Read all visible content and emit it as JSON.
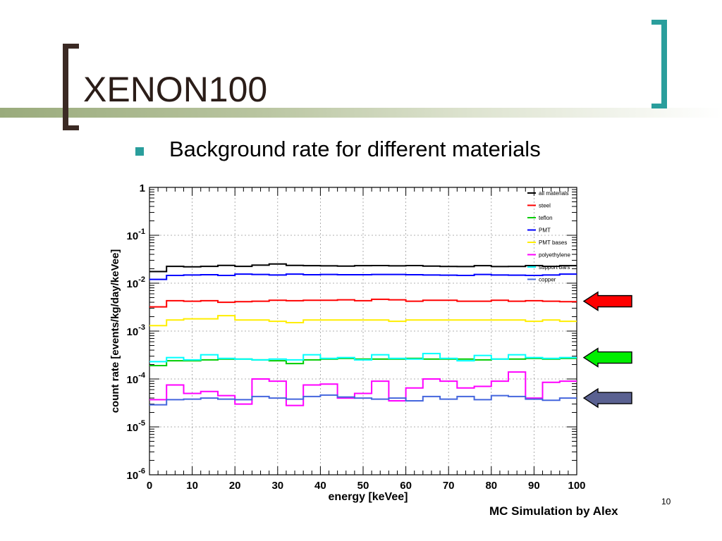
{
  "slide": {
    "title": "XENON100",
    "bullet": "Background rate for different materials",
    "credit": "MC Simulation by Alex",
    "page_number": "10",
    "bracket_left_color": "#3b2a24",
    "bracket_right_color": "#2a9e9c",
    "bullet_color": "#2a9e9c"
  },
  "chart_data": {
    "type": "line",
    "title": "",
    "xlabel": "energy [keVee]",
    "ylabel": "count rate [events/kg/day/keVee]",
    "xlim": [
      0,
      100
    ],
    "ylim": [
      1e-06,
      1
    ],
    "yscale": "log",
    "grid": true,
    "legend_position": "top-right",
    "x_ticks": [
      "0",
      "10",
      "20",
      "30",
      "40",
      "50",
      "60",
      "70",
      "80",
      "90",
      "100"
    ],
    "y_ticks": [
      {
        "base": "1",
        "exp": ""
      },
      {
        "base": "10",
        "exp": "-1"
      },
      {
        "base": "10",
        "exp": "-2"
      },
      {
        "base": "10",
        "exp": "-3"
      },
      {
        "base": "10",
        "exp": "-4"
      },
      {
        "base": "10",
        "exp": "-5"
      },
      {
        "base": "10",
        "exp": "-6"
      }
    ],
    "bin_width": 4,
    "series": [
      {
        "name": "all materials",
        "color": "#000000",
        "values": [
          0.0175,
          0.0225,
          0.022,
          0.0225,
          0.0235,
          0.0225,
          0.0238,
          0.0252,
          0.0235,
          0.0232,
          0.023,
          0.0228,
          0.0232,
          0.0233,
          0.023,
          0.0233,
          0.0228,
          0.0223,
          0.0222,
          0.0232,
          0.0222,
          0.0223,
          0.0233,
          0.0225,
          0.0232
        ]
      },
      {
        "name": "steel",
        "color": "#ff0000",
        "values": [
          0.0032,
          0.0043,
          0.0042,
          0.0043,
          0.004,
          0.0041,
          0.0042,
          0.0044,
          0.0043,
          0.0044,
          0.0044,
          0.0045,
          0.0043,
          0.0046,
          0.0045,
          0.0042,
          0.0044,
          0.0044,
          0.0042,
          0.0042,
          0.0044,
          0.0042,
          0.0043,
          0.0042,
          0.0041
        ]
      },
      {
        "name": "teflon",
        "color": "#00cc00",
        "values": [
          0.00019,
          0.00024,
          0.00024,
          0.00025,
          0.00026,
          0.00026,
          0.00025,
          0.00024,
          0.00021,
          0.00025,
          0.00026,
          0.00027,
          0.00026,
          0.00026,
          0.00026,
          0.00027,
          0.00026,
          0.00026,
          0.00026,
          0.00025,
          0.00026,
          0.00026,
          0.00027,
          0.00026,
          0.00027
        ]
      },
      {
        "name": "PMT",
        "color": "#0000ff",
        "values": [
          0.012,
          0.0145,
          0.0148,
          0.015,
          0.0145,
          0.0155,
          0.0152,
          0.0148,
          0.0155,
          0.015,
          0.0152,
          0.015,
          0.015,
          0.0152,
          0.0152,
          0.015,
          0.0148,
          0.0147,
          0.0145,
          0.0152,
          0.0148,
          0.0147,
          0.0145,
          0.0148,
          0.0155
        ]
      },
      {
        "name": "PMT bases",
        "color": "#ffee00",
        "values": [
          0.0013,
          0.0017,
          0.0018,
          0.0018,
          0.0021,
          0.0017,
          0.0017,
          0.0016,
          0.0015,
          0.0017,
          0.0017,
          0.0017,
          0.0017,
          0.0017,
          0.0016,
          0.0017,
          0.0017,
          0.0017,
          0.0017,
          0.0017,
          0.0017,
          0.0017,
          0.0016,
          0.0017,
          0.0016
        ]
      },
      {
        "name": "polyethylene",
        "color": "#ff00ff",
        "values": [
          3.7e-05,
          7.5e-05,
          5e-05,
          5.5e-05,
          4.5e-05,
          3e-05,
          0.0001,
          9e-05,
          2.8e-05,
          7.5e-05,
          7.8e-05,
          4e-05,
          5e-05,
          9e-05,
          3.5e-05,
          6.5e-05,
          0.0001,
          9e-05,
          6.5e-05,
          7e-05,
          9e-05,
          0.00014,
          4e-05,
          8.5e-05,
          9e-05
        ]
      },
      {
        "name": "support bars",
        "color": "#00ffff",
        "values": [
          0.00023,
          0.00028,
          0.00025,
          0.00032,
          0.00027,
          0.00026,
          0.00025,
          0.00026,
          0.00025,
          0.00032,
          0.00027,
          0.00028,
          0.00025,
          0.00032,
          0.00027,
          0.00026,
          0.00034,
          0.00027,
          0.00024,
          0.00031,
          0.00026,
          0.00032,
          0.00028,
          0.00027,
          0.00028
        ]
      },
      {
        "name": "copper",
        "color": "#4466dd",
        "values": [
          2.9e-05,
          3.7e-05,
          3.8e-05,
          4e-05,
          3.8e-05,
          3.7e-05,
          4.3e-05,
          4e-05,
          3.8e-05,
          4.3e-05,
          4.6e-05,
          4.2e-05,
          4e-05,
          3.8e-05,
          4e-05,
          3.5e-05,
          4.3e-05,
          3.8e-05,
          4.3e-05,
          3.7e-05,
          4.5e-05,
          4.3e-05,
          3.8e-05,
          3.6e-05,
          4e-05
        ]
      }
    ],
    "annotations": [
      {
        "name": "red-arrow",
        "color": "#ff0000",
        "points_to": 0.0042
      },
      {
        "name": "green-arrow",
        "color": "#00ee00",
        "points_to": 0.00028
      },
      {
        "name": "slate-arrow",
        "color": "#5a6191",
        "points_to": 4e-05
      }
    ]
  }
}
